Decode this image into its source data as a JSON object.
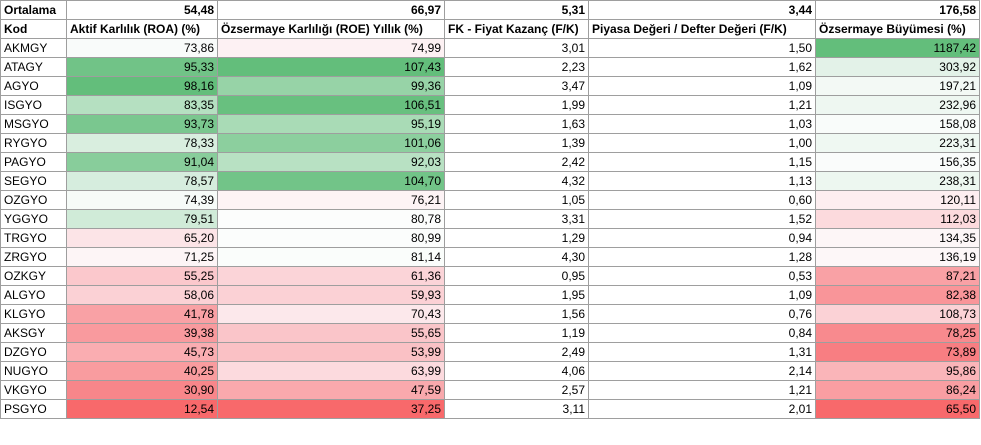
{
  "sheet": {
    "average": {
      "label": "Ortalama",
      "values": [
        "54,48",
        "66,97",
        "5,31",
        "3,44",
        "176,58"
      ]
    },
    "headers": [
      "Kod",
      "Aktif Karlılık (ROA) (%)",
      "Özsermaye Karlılığı (ROE) Yıllık (%)",
      "FK - Fiyat Kazanç (F/K)",
      "Piyasa Değeri / Defter Değeri (F/K)",
      "Özsermaye Büyümesi (%)"
    ],
    "rows": [
      {
        "kod": "AKMGY",
        "cells": [
          {
            "v": "73,86",
            "bg": "#f9fbfa"
          },
          {
            "v": "74,99",
            "bg": "#fdf1f3"
          },
          {
            "v": "3,01"
          },
          {
            "v": "1,50"
          },
          {
            "v": "1187,42",
            "bg": "#63be7b"
          }
        ]
      },
      {
        "kod": "ATAGY",
        "cells": [
          {
            "v": "95,33",
            "bg": "#71c387"
          },
          {
            "v": "107,43",
            "bg": "#63be7b"
          },
          {
            "v": "2,23"
          },
          {
            "v": "1,62"
          },
          {
            "v": "303,92",
            "bg": "#e3f2e8"
          }
        ]
      },
      {
        "kod": "AGYO",
        "cells": [
          {
            "v": "98,16",
            "bg": "#63be7b"
          },
          {
            "v": "99,36",
            "bg": "#97d3a7"
          },
          {
            "v": "3,47"
          },
          {
            "v": "1,09"
          },
          {
            "v": "197,21",
            "bg": "#f3f9f5"
          }
        ]
      },
      {
        "kod": "ISGYO",
        "cells": [
          {
            "v": "83,35",
            "bg": "#b5e0c1"
          },
          {
            "v": "106,51",
            "bg": "#68c07f"
          },
          {
            "v": "1,99"
          },
          {
            "v": "1,21"
          },
          {
            "v": "232,96",
            "bg": "#eef7f1"
          }
        ]
      },
      {
        "kod": "MSGYO",
        "cells": [
          {
            "v": "93,73",
            "bg": "#7ac78f"
          },
          {
            "v": "95,19",
            "bg": "#a9dbb6"
          },
          {
            "v": "1,63"
          },
          {
            "v": "1,03"
          },
          {
            "v": "158,08",
            "bg": "#f9fcfa"
          }
        ]
      },
      {
        "kod": "RYGYO",
        "cells": [
          {
            "v": "78,33",
            "bg": "#d9eedf"
          },
          {
            "v": "101,06",
            "bg": "#8ccf9e"
          },
          {
            "v": "1,39"
          },
          {
            "v": "1,00"
          },
          {
            "v": "223,31",
            "bg": "#eff8f2"
          }
        ]
      },
      {
        "kod": "PAGYO",
        "cells": [
          {
            "v": "91,04",
            "bg": "#88cd9b"
          },
          {
            "v": "92,03",
            "bg": "#b8e1c3"
          },
          {
            "v": "2,42"
          },
          {
            "v": "1,15"
          },
          {
            "v": "156,35",
            "bg": "#fafcfb"
          }
        ]
      },
      {
        "kod": "SEGYO",
        "cells": [
          {
            "v": "78,57",
            "bg": "#d6edde"
          },
          {
            "v": "104,70",
            "bg": "#72c488"
          },
          {
            "v": "4,32"
          },
          {
            "v": "1,13"
          },
          {
            "v": "238,31",
            "bg": "#edf7f0"
          }
        ]
      },
      {
        "kod": "OZGYO",
        "cells": [
          {
            "v": "74,39",
            "bg": "#f6fbf8"
          },
          {
            "v": "76,21",
            "bg": "#fdf3f5"
          },
          {
            "v": "1,05"
          },
          {
            "v": "0,60"
          },
          {
            "v": "120,11",
            "bg": "#fdeef0"
          }
        ]
      },
      {
        "kod": "YGGYO",
        "cells": [
          {
            "v": "79,51",
            "bg": "#d0ebd8"
          },
          {
            "v": "80,78",
            "bg": "#fcfdfc"
          },
          {
            "v": "3,31"
          },
          {
            "v": "1,52"
          },
          {
            "v": "112,03",
            "bg": "#fcdadd"
          }
        ]
      },
      {
        "kod": "TRGYO",
        "cells": [
          {
            "v": "65,20",
            "bg": "#fce4e7"
          },
          {
            "v": "80,99",
            "bg": "#fbfdfc"
          },
          {
            "v": "1,29"
          },
          {
            "v": "0,94"
          },
          {
            "v": "134,35",
            "bg": "#fdf6f7"
          }
        ]
      },
      {
        "kod": "ZRGYO",
        "cells": [
          {
            "v": "71,25",
            "bg": "#fdf5f6"
          },
          {
            "v": "81,14",
            "bg": "#fafdfb"
          },
          {
            "v": "4,30"
          },
          {
            "v": "1,28"
          },
          {
            "v": "136,19",
            "bg": "#fdf7f8"
          }
        ]
      },
      {
        "kod": "OZKGY",
        "cells": [
          {
            "v": "55,25",
            "bg": "#fbc8cc"
          },
          {
            "v": "61,36",
            "bg": "#fbd4d8"
          },
          {
            "v": "0,95"
          },
          {
            "v": "0,53"
          },
          {
            "v": "87,21",
            "bg": "#f9a1a5"
          }
        ]
      },
      {
        "kod": "ALGYO",
        "cells": [
          {
            "v": "58,06",
            "bg": "#fbd1d5"
          },
          {
            "v": "59,93",
            "bg": "#fbd1d5"
          },
          {
            "v": "1,95"
          },
          {
            "v": "1,09"
          },
          {
            "v": "82,38",
            "bg": "#f99599"
          }
        ]
      },
      {
        "kod": "KLGYO",
        "cells": [
          {
            "v": "41,78",
            "bg": "#f9a1a5"
          },
          {
            "v": "70,43",
            "bg": "#fce8eb"
          },
          {
            "v": "1,56"
          },
          {
            "v": "0,76"
          },
          {
            "v": "108,73",
            "bg": "#fbd2d6"
          }
        ]
      },
      {
        "kod": "AKSGY",
        "cells": [
          {
            "v": "39,38",
            "bg": "#f99a9e"
          },
          {
            "v": "55,65",
            "bg": "#fac5c9"
          },
          {
            "v": "1,19"
          },
          {
            "v": "0,84"
          },
          {
            "v": "78,25",
            "bg": "#f88a8e"
          }
        ]
      },
      {
        "kod": "DZGYO",
        "cells": [
          {
            "v": "45,73",
            "bg": "#faadb1"
          },
          {
            "v": "53,99",
            "bg": "#fac1c5"
          },
          {
            "v": "2,49"
          },
          {
            "v": "1,31"
          },
          {
            "v": "73,89",
            "bg": "#f87e82"
          }
        ]
      },
      {
        "kod": "NUGYO",
        "cells": [
          {
            "v": "40,25",
            "bg": "#f99c9f"
          },
          {
            "v": "63,99",
            "bg": "#fcdade"
          },
          {
            "v": "4,06"
          },
          {
            "v": "2,14"
          },
          {
            "v": "95,86",
            "bg": "#fab5b9"
          }
        ]
      },
      {
        "kod": "VKGYO",
        "cells": [
          {
            "v": "30,90",
            "bg": "#f8868a"
          },
          {
            "v": "47,59",
            "bg": "#f9a9ad"
          },
          {
            "v": "2,57"
          },
          {
            "v": "1,21"
          },
          {
            "v": "86,24",
            "bg": "#f99ea2"
          }
        ]
      },
      {
        "kod": "PSGYO",
        "cells": [
          {
            "v": "12,54",
            "bg": "#f8696b"
          },
          {
            "v": "37,25",
            "bg": "#f8696b"
          },
          {
            "v": "3,11"
          },
          {
            "v": "2,01"
          },
          {
            "v": "65,50",
            "bg": "#f8696b"
          }
        ]
      }
    ]
  }
}
